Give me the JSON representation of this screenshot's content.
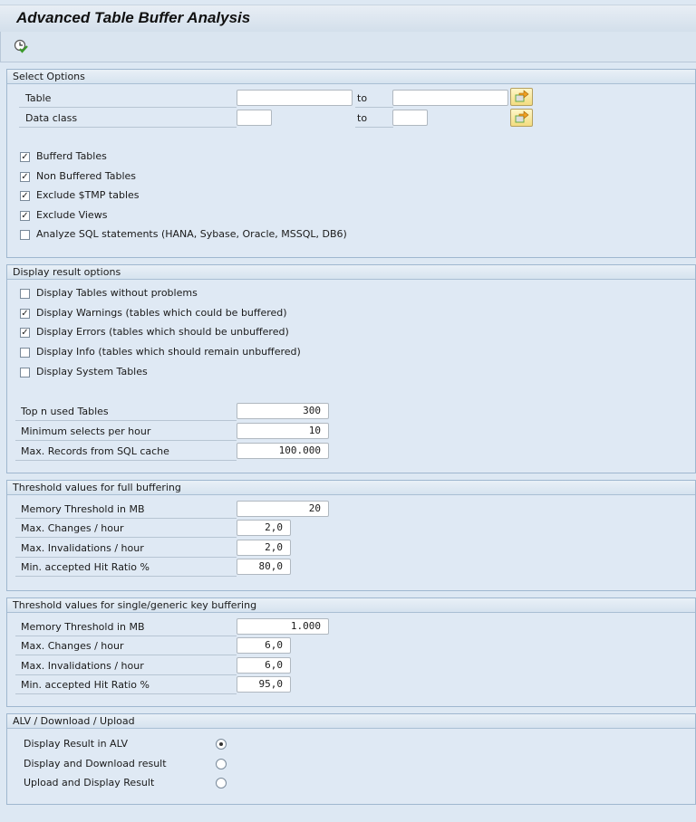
{
  "title": "Advanced Table Buffer Analysis",
  "toolbar": {
    "execute_icon": "clock-execute-icon"
  },
  "select_options": {
    "header": "Select Options",
    "table_label": "Table",
    "table_from": "",
    "table_to": "",
    "to_label": "to",
    "data_class_label": "Data class",
    "data_class_from": "",
    "data_class_to": "",
    "checkboxes": [
      {
        "label": "Bufferd Tables",
        "checked": true
      },
      {
        "label": "Non Buffered Tables",
        "checked": true
      },
      {
        "label": "Exclude $TMP tables",
        "checked": true
      },
      {
        "label": "Exclude Views",
        "checked": true
      },
      {
        "label": "Analyze SQL statements (HANA, Sybase, Oracle, MSSQL, DB6)",
        "checked": false
      }
    ]
  },
  "display_options": {
    "header": "Display result options",
    "checkboxes": [
      {
        "label": "Display Tables without problems",
        "checked": false
      },
      {
        "label": "Display Warnings (tables which could be buffered)",
        "checked": true
      },
      {
        "label": "Display Errors (tables which should be unbuffered)",
        "checked": true
      },
      {
        "label": "Display Info (tables which should remain unbuffered)",
        "checked": false
      },
      {
        "label": "Display System Tables",
        "checked": false
      }
    ],
    "fields": [
      {
        "label": "Top n used Tables",
        "value": "300"
      },
      {
        "label": "Minimum selects per hour",
        "value": "10"
      },
      {
        "label": "Max. Records from SQL cache",
        "value": "100.000"
      }
    ]
  },
  "full_buffering": {
    "header": "Threshold values for full buffering",
    "fields": [
      {
        "label": "Memory Threshold in MB",
        "value": "20"
      },
      {
        "label": "Max. Changes / hour",
        "value": "2,0"
      },
      {
        "label": "Max. Invalidations / hour",
        "value": "2,0"
      },
      {
        "label": "Min. accepted Hit Ratio %",
        "value": "80,0"
      }
    ]
  },
  "key_buffering": {
    "header": "Threshold values for single/generic key buffering",
    "fields": [
      {
        "label": "Memory Threshold in MB",
        "value": "1.000"
      },
      {
        "label": "Max. Changes / hour",
        "value": "6,0"
      },
      {
        "label": "Max. Invalidations / hour",
        "value": "6,0"
      },
      {
        "label": "Min. accepted Hit Ratio %",
        "value": "95,0"
      }
    ]
  },
  "alv": {
    "header": "ALV / Download / Upload",
    "radios": [
      {
        "label": "Display Result in ALV",
        "selected": true
      },
      {
        "label": "Display and Download result",
        "selected": false
      },
      {
        "label": "Upload and Display Result",
        "selected": false
      }
    ]
  }
}
